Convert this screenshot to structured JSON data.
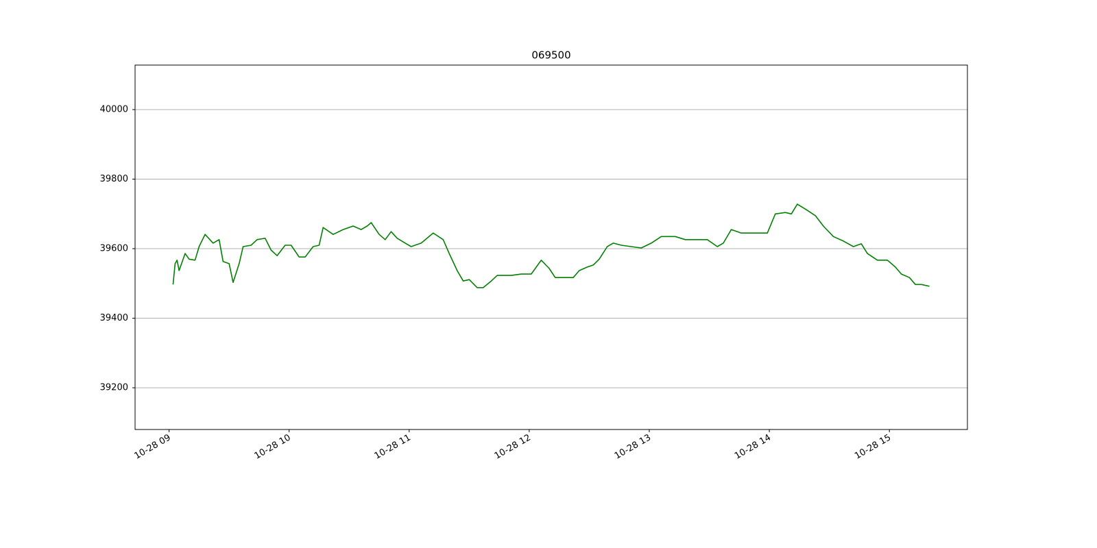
{
  "chart_data": {
    "type": "line",
    "title": "069500",
    "x": [
      "10-28 09:02",
      "10-28 09:03",
      "10-28 09:04",
      "10-28 09:05",
      "10-28 09:08",
      "10-28 09:10",
      "10-28 09:13",
      "10-28 09:15",
      "10-28 09:18",
      "10-28 09:22",
      "10-28 09:25",
      "10-28 09:27",
      "10-28 09:30",
      "10-28 09:32",
      "10-28 09:35",
      "10-28 09:37",
      "10-28 09:41",
      "10-28 09:44",
      "10-28 09:48",
      "10-28 09:51",
      "10-28 09:54",
      "10-28 09:58",
      "10-28 10:01",
      "10-28 10:05",
      "10-28 10:08",
      "10-28 10:12",
      "10-28 10:15",
      "10-28 10:17",
      "10-28 10:22",
      "10-28 10:27",
      "10-28 10:32",
      "10-28 10:36",
      "10-28 10:39",
      "10-28 10:41",
      "10-28 10:45",
      "10-28 10:48",
      "10-28 10:51",
      "10-28 10:54",
      "10-28 10:58",
      "10-28 11:01",
      "10-28 11:06",
      "10-28 11:12",
      "10-28 11:17",
      "10-28 11:20",
      "10-28 11:24",
      "10-28 11:27",
      "10-28 11:30",
      "10-28 11:34",
      "10-28 11:37",
      "10-28 11:41",
      "10-28 11:44",
      "10-28 11:51",
      "10-28 11:56",
      "10-28 12:01",
      "10-28 12:06",
      "10-28 12:10",
      "10-28 12:13",
      "10-28 12:17",
      "10-28 12:22",
      "10-28 12:25",
      "10-28 12:29",
      "10-28 12:32",
      "10-28 12:35",
      "10-28 12:39",
      "10-28 12:42",
      "10-28 12:46",
      "10-28 12:51",
      "10-28 12:56",
      "10-28 13:01",
      "10-28 13:06",
      "10-28 13:13",
      "10-28 13:18",
      "10-28 13:23",
      "10-28 13:29",
      "10-28 13:34",
      "10-28 13:37",
      "10-28 13:41",
      "10-28 13:46",
      "10-28 13:51",
      "10-28 13:56",
      "10-28 13:59",
      "10-28 14:03",
      "10-28 14:08",
      "10-28 14:11",
      "10-28 14:14",
      "10-28 14:18",
      "10-28 14:23",
      "10-28 14:27",
      "10-28 14:32",
      "10-28 14:37",
      "10-28 14:42",
      "10-28 14:46",
      "10-28 14:49",
      "10-28 14:54",
      "10-28 14:59",
      "10-28 15:03",
      "10-28 15:06",
      "10-28 15:10",
      "10-28 15:13",
      "10-28 15:16",
      "10-28 15:20"
    ],
    "series": [
      {
        "name": "069500",
        "color": "#008000",
        "values": [
          39497,
          39557,
          39567,
          39537,
          39586,
          39570,
          39567,
          39606,
          39641,
          39616,
          39626,
          39563,
          39557,
          39503,
          39557,
          39606,
          39610,
          39626,
          39630,
          39596,
          39580,
          39610,
          39610,
          39576,
          39576,
          39606,
          39610,
          39661,
          39641,
          39655,
          39665,
          39655,
          39665,
          39675,
          39641,
          39626,
          39649,
          39630,
          39616,
          39606,
          39616,
          39645,
          39626,
          39586,
          39537,
          39507,
          39511,
          39488,
          39488,
          39507,
          39523,
          39523,
          39527,
          39527,
          39567,
          39543,
          39517,
          39517,
          39517,
          39537,
          39547,
          39553,
          39570,
          39606,
          39616,
          39610,
          39606,
          39602,
          39616,
          39635,
          39635,
          39626,
          39626,
          39626,
          39606,
          39616,
          39655,
          39645,
          39645,
          39645,
          39645,
          39700,
          39704,
          39700,
          39728,
          39714,
          39695,
          39665,
          39635,
          39622,
          39606,
          39614,
          39586,
          39567,
          39567,
          39547,
          39527,
          39517,
          39497,
          39497,
          39492
        ]
      }
    ],
    "xlim": [
      "10-28 08:43",
      "10-28 15:39"
    ],
    "xticks": [
      {
        "value": "10-28 09:00",
        "label": "10-28 09"
      },
      {
        "value": "10-28 10:00",
        "label": "10-28 10"
      },
      {
        "value": "10-28 11:00",
        "label": "10-28 11"
      },
      {
        "value": "10-28 12:00",
        "label": "10-28 12"
      },
      {
        "value": "10-28 13:00",
        "label": "10-28 13"
      },
      {
        "value": "10-28 14:00",
        "label": "10-28 14"
      },
      {
        "value": "10-28 15:00",
        "label": "10-28 15"
      }
    ],
    "ylim": [
      39080,
      40128
    ],
    "yticks": [
      39200,
      39400,
      39600,
      39800,
      40000
    ],
    "grid": "y"
  }
}
